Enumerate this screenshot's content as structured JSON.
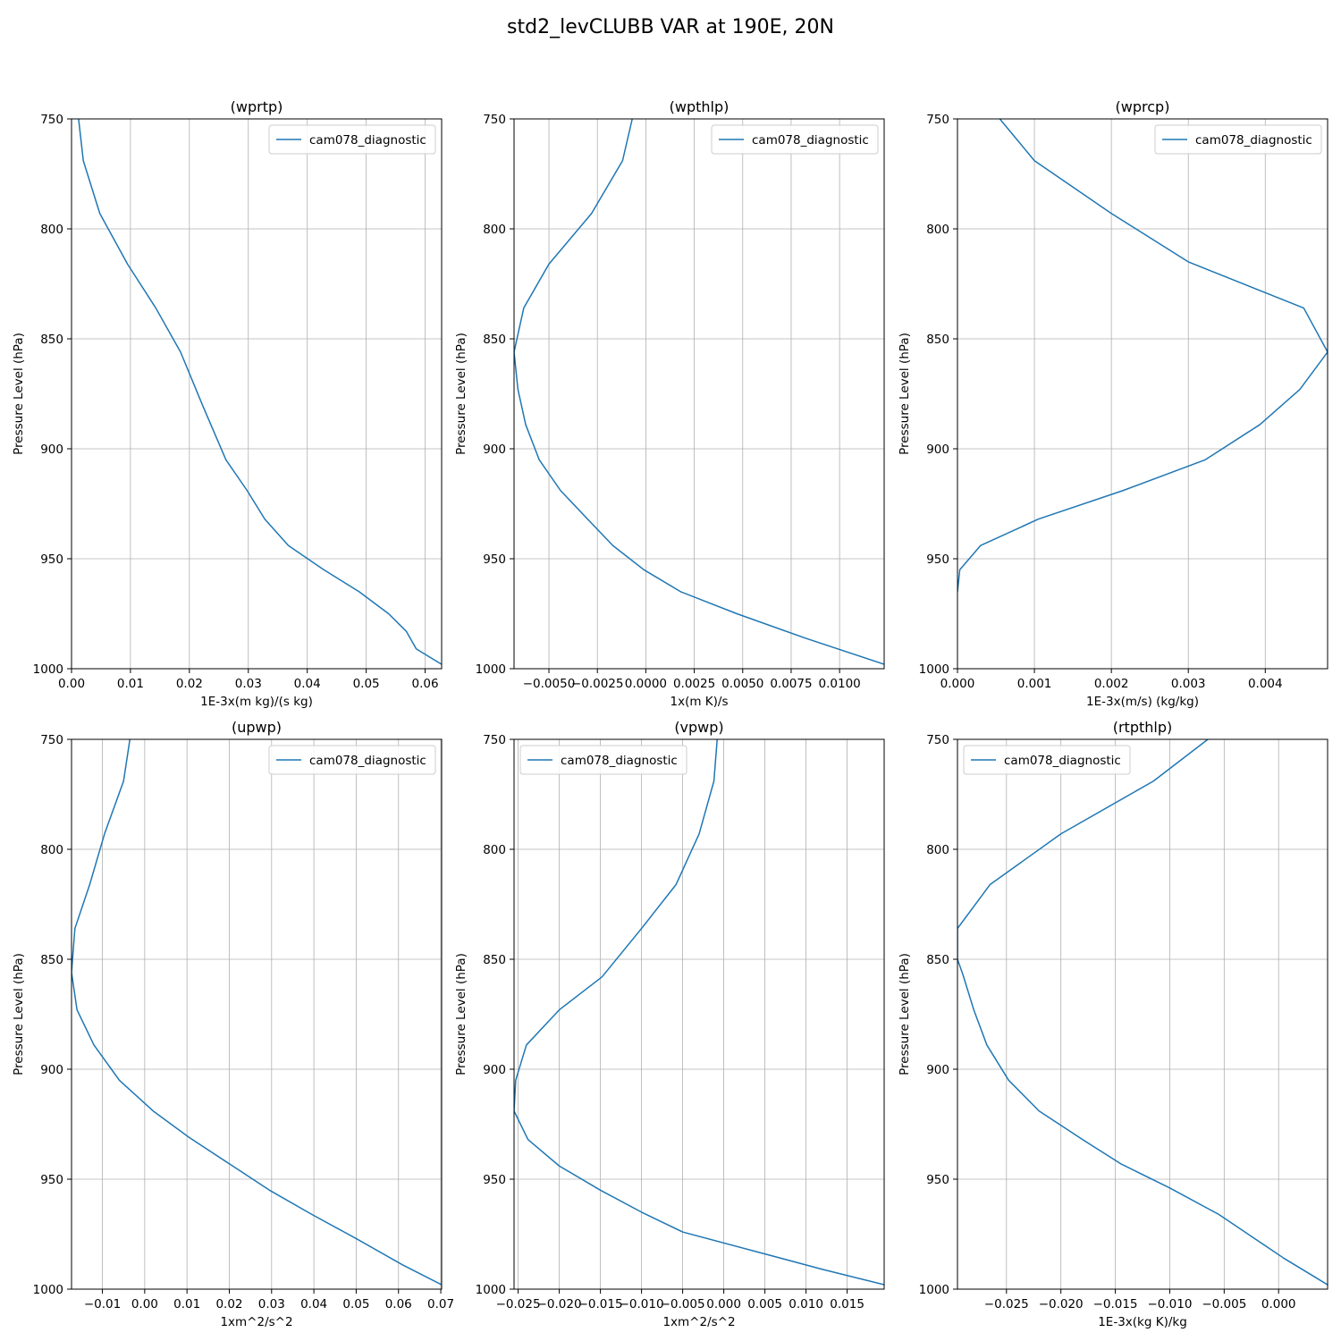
{
  "figure": {
    "title": "std2_levCLUBB VAR at 190E, 20N"
  },
  "chart_data": [
    {
      "type": "line",
      "title": "(wprtp)",
      "xlabel": "1E-3x(m kg)/(s kg)",
      "ylabel": "Pressure Level (hPa)",
      "xlim": [
        0,
        0.0628
      ],
      "ylim": [
        1000,
        750
      ],
      "xticks": [
        0,
        0.01,
        0.02,
        0.03,
        0.04,
        0.05,
        0.06
      ],
      "xtick_labels": [
        "0.00",
        "0.01",
        "0.02",
        "0.03",
        "0.04",
        "0.05",
        "0.06"
      ],
      "yticks": [
        750,
        800,
        850,
        900,
        950,
        1000
      ],
      "ytick_labels": [
        "750",
        "800",
        "850",
        "900",
        "950",
        "1000"
      ],
      "grid": true,
      "legend": {
        "entries": [
          "cam078_diagnostic"
        ],
        "loc": "upper right"
      },
      "series": [
        {
          "name": "cam078_diagnostic",
          "color": "#1f77b4",
          "x": [
            0.0012,
            0.002,
            0.0048,
            0.0095,
            0.0143,
            0.0185,
            0.0222,
            0.0262,
            0.0298,
            0.0328,
            0.0368,
            0.0428,
            0.0488,
            0.0538,
            0.0568,
            0.0585,
            0.0628
          ],
          "y": [
            750,
            769,
            793,
            816,
            836,
            856,
            880,
            905,
            919,
            932,
            944,
            955,
            965,
            975,
            983,
            991,
            998
          ]
        }
      ]
    },
    {
      "type": "line",
      "title": "(wpthlp)",
      "xlabel": "1x(m K)/s",
      "ylabel": "Pressure Level (hPa)",
      "xlim": [
        -0.0068,
        0.0123
      ],
      "ylim": [
        1000,
        750
      ],
      "xticks": [
        -0.005,
        -0.0025,
        0,
        0.0025,
        0.005,
        0.0075,
        0.01
      ],
      "xtick_labels": [
        "−0.0050",
        "−0.0025",
        "0.0000",
        "0.0025",
        "0.0050",
        "0.0075",
        "0.0100"
      ],
      "yticks": [
        750,
        800,
        850,
        900,
        950,
        1000
      ],
      "ytick_labels": [
        "750",
        "800",
        "850",
        "900",
        "950",
        "1000"
      ],
      "grid": true,
      "legend": {
        "entries": [
          "cam078_diagnostic"
        ],
        "loc": "upper right"
      },
      "series": [
        {
          "name": "cam078_diagnostic",
          "color": "#1f77b4",
          "x": [
            -0.0007,
            -0.0012,
            -0.0028,
            -0.005,
            -0.0063,
            -0.0068,
            -0.0066,
            -0.0062,
            -0.0055,
            -0.0044,
            -0.003,
            -0.0017,
            -0.0001,
            0.0018,
            0.0047,
            0.0082,
            0.0123
          ],
          "y": [
            750,
            769,
            793,
            816,
            836,
            856,
            873,
            889,
            905,
            919,
            932,
            944,
            955,
            965,
            975,
            986,
            998
          ]
        }
      ]
    },
    {
      "type": "line",
      "title": "(wprcp)",
      "xlabel": "1E-3x(m/s) (kg/kg)",
      "ylabel": "Pressure Level (hPa)",
      "xlim": [
        0,
        0.00481
      ],
      "ylim": [
        1000,
        750
      ],
      "xticks": [
        0,
        0.001,
        0.002,
        0.003,
        0.004
      ],
      "xtick_labels": [
        "0.000",
        "0.001",
        "0.002",
        "0.003",
        "0.004"
      ],
      "yticks": [
        750,
        800,
        850,
        900,
        950,
        1000
      ],
      "ytick_labels": [
        "750",
        "800",
        "850",
        "900",
        "950",
        "1000"
      ],
      "grid": true,
      "legend": {
        "entries": [
          "cam078_diagnostic"
        ],
        "loc": "upper right"
      },
      "series": [
        {
          "name": "cam078_diagnostic",
          "color": "#1f77b4",
          "x": [
            0.00055,
            0.001,
            0.002,
            0.003,
            0.0045,
            0.00481,
            0.00445,
            0.00393,
            0.00322,
            0.00215,
            0.00105,
            0.0003,
            3e-05,
            0.0
          ],
          "y": [
            750,
            769,
            793,
            815,
            836,
            856,
            873,
            889,
            905,
            919,
            932,
            944,
            955,
            965
          ]
        }
      ]
    },
    {
      "type": "line",
      "title": "(upwp)",
      "xlabel": "1xm^2/s^2",
      "ylabel": "Pressure Level (hPa)",
      "xlim": [
        -0.0173,
        0.0702
      ],
      "ylim": [
        1000,
        750
      ],
      "xticks": [
        -0.01,
        0,
        0.01,
        0.02,
        0.03,
        0.04,
        0.05,
        0.06,
        0.07
      ],
      "xtick_labels": [
        "−0.01",
        "0.00",
        "0.01",
        "0.02",
        "0.03",
        "0.04",
        "0.05",
        "0.06",
        "0.07"
      ],
      "yticks": [
        750,
        800,
        850,
        900,
        950,
        1000
      ],
      "ytick_labels": [
        "750",
        "800",
        "850",
        "900",
        "950",
        "1000"
      ],
      "grid": true,
      "legend": {
        "entries": [
          "cam078_diagnostic"
        ],
        "loc": "upper right"
      },
      "series": [
        {
          "name": "cam078_diagnostic",
          "color": "#1f77b4",
          "x": [
            -0.0035,
            -0.005,
            -0.0095,
            -0.013,
            -0.0165,
            -0.0173,
            -0.016,
            -0.012,
            -0.006,
            0.002,
            0.0105,
            0.02,
            0.0295,
            0.0395,
            0.05,
            0.061,
            0.0702
          ],
          "y": [
            750,
            769,
            793,
            816,
            836,
            856,
            873,
            889,
            905,
            919,
            931,
            943,
            955,
            966,
            977,
            989,
            998
          ]
        }
      ]
    },
    {
      "type": "line",
      "title": "(vpwp)",
      "xlabel": "1xm^2/s^2",
      "ylabel": "Pressure Level (hPa)",
      "xlim": [
        -0.0255,
        0.0195
      ],
      "ylim": [
        1000,
        750
      ],
      "xticks": [
        -0.025,
        -0.02,
        -0.015,
        -0.01,
        -0.005,
        0,
        0.005,
        0.01,
        0.015
      ],
      "xtick_labels": [
        "−0.025",
        "−0.020",
        "−0.015",
        "−0.010",
        "−0.005",
        "0.000",
        "0.005",
        "0.010",
        "0.015"
      ],
      "yticks": [
        750,
        800,
        850,
        900,
        950,
        1000
      ],
      "ytick_labels": [
        "750",
        "800",
        "850",
        "900",
        "950",
        "1000"
      ],
      "grid": true,
      "legend": {
        "entries": [
          "cam078_diagnostic"
        ],
        "loc": "upper left"
      },
      "series": [
        {
          "name": "cam078_diagnostic",
          "color": "#1f77b4",
          "x": [
            -0.0008,
            -0.0012,
            -0.003,
            -0.0058,
            -0.01,
            -0.0148,
            -0.02,
            -0.024,
            -0.0253,
            -0.0255,
            -0.0238,
            -0.02,
            -0.015,
            -0.01,
            -0.005,
            0.005,
            0.012,
            0.0195
          ],
          "y": [
            750,
            769,
            793,
            816,
            836,
            858,
            873,
            889,
            905,
            919,
            932,
            944,
            955,
            965,
            974,
            984,
            991,
            998
          ]
        }
      ]
    },
    {
      "type": "line",
      "title": "(rtpthlp)",
      "xlabel": "1E-3x(kg K)/kg",
      "ylabel": "Pressure Level (hPa)",
      "xlim": [
        -0.0295,
        0.0045
      ],
      "ylim": [
        1000,
        750
      ],
      "xticks": [
        -0.025,
        -0.02,
        -0.015,
        -0.01,
        -0.005,
        0
      ],
      "xtick_labels": [
        "−0.025",
        "−0.020",
        "−0.015",
        "−0.010",
        "−0.005",
        "0.000"
      ],
      "yticks": [
        750,
        800,
        850,
        900,
        950,
        1000
      ],
      "ytick_labels": [
        "750",
        "800",
        "850",
        "900",
        "950",
        "1000"
      ],
      "grid": true,
      "legend": {
        "entries": [
          "cam078_diagnostic"
        ],
        "loc": "upper left"
      },
      "series": [
        {
          "name": "cam078_diagnostic",
          "color": "#1f77b4",
          "x": [
            -0.0065,
            -0.0115,
            -0.02,
            -0.0265,
            -0.0295,
            -0.0295,
            -0.029,
            -0.028,
            -0.0268,
            -0.0248,
            -0.022,
            -0.018,
            -0.0145,
            -0.01,
            -0.0055,
            -0.0025,
            0.0005,
            0.0035,
            0.0045
          ],
          "y": [
            750,
            769,
            793,
            816,
            836,
            850,
            857,
            873,
            889,
            905,
            919,
            932,
            943,
            954,
            966,
            976,
            986,
            995,
            998
          ]
        }
      ]
    }
  ]
}
